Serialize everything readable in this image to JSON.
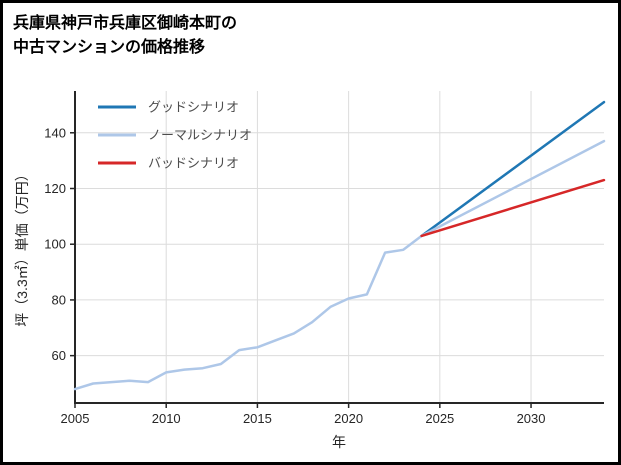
{
  "title": {
    "line1": "兵庫県神戸市兵庫区御崎本町の",
    "line2": "中古マンションの価格推移"
  },
  "chart_data": {
    "type": "line",
    "title": "兵庫県神戸市兵庫区御崎本町の中古マンションの価格推移",
    "xlabel": "年",
    "ylabel": "坪（3.3㎡）単価（万円）",
    "xlim": [
      2005,
      2034
    ],
    "ylim": [
      43,
      155
    ],
    "x_ticks": [
      2005,
      2010,
      2015,
      2020,
      2025,
      2030
    ],
    "y_ticks": [
      60,
      80,
      100,
      120,
      140
    ],
    "grid": true,
    "legend_position": "upper-left",
    "history": {
      "color": "#aec7e8",
      "x": [
        2005,
        2006,
        2007,
        2008,
        2009,
        2010,
        2011,
        2012,
        2013,
        2014,
        2015,
        2016,
        2017,
        2018,
        2019,
        2020,
        2021,
        2022,
        2023,
        2024
      ],
      "values": [
        48,
        50,
        50.5,
        51,
        50.5,
        54,
        55,
        55.5,
        57,
        62,
        63,
        65.5,
        68,
        72,
        77.5,
        80.5,
        82,
        97,
        98,
        103
      ]
    },
    "series": [
      {
        "name": "グッドシナリオ",
        "color": "#1f77b4",
        "x": [
          2024,
          2034
        ],
        "values": [
          103,
          151
        ]
      },
      {
        "name": "ノーマルシナリオ",
        "color": "#aec7e8",
        "x": [
          2024,
          2034
        ],
        "values": [
          103,
          137
        ]
      },
      {
        "name": "バッドシナリオ",
        "color": "#d62728",
        "x": [
          2024,
          2034
        ],
        "values": [
          103,
          123
        ]
      }
    ],
    "colors": {
      "axis": "#262626",
      "grid": "#dcdcdc",
      "tick_label": "#262626",
      "legend_text": "#4d4d4d"
    }
  }
}
